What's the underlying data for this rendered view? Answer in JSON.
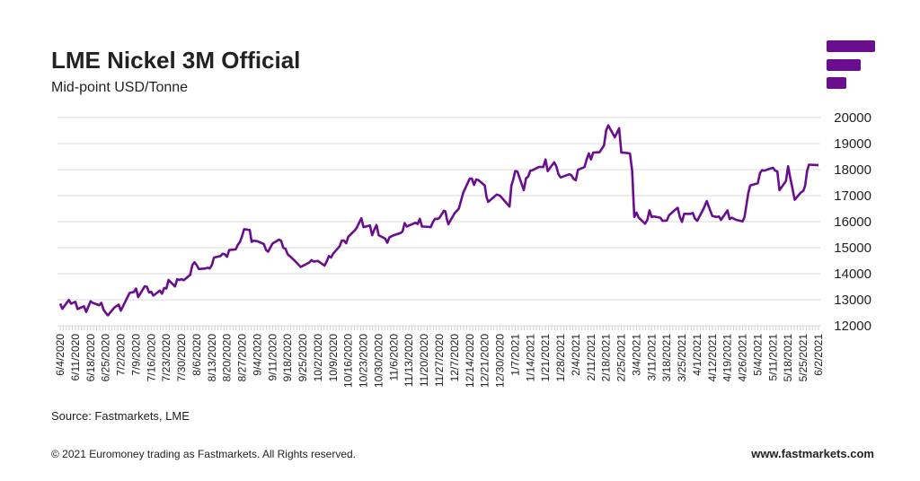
{
  "header": {
    "title": "LME Nickel 3M Official",
    "subtitle": "Mid-point USD/Tonne"
  },
  "brand": {
    "color": "#6b0d8f",
    "logo": "fastmarkets-bars-logo"
  },
  "footer": {
    "source": "Source: Fastmarkets, LME",
    "copyright": "© 2021 Euromoney trading as Fastmarkets. All Rights reserved.",
    "site": "www.fastmarkets.com"
  },
  "chart_data": {
    "type": "line",
    "title": "LME Nickel 3M Official",
    "subtitle": "Mid-point USD/Tonne",
    "xlabel": "",
    "ylabel": "",
    "ylim": [
      12000,
      20000
    ],
    "y_ticks": [
      "12000",
      "13000",
      "14000",
      "15000",
      "16000",
      "17000",
      "18000",
      "19000",
      "20000"
    ],
    "y_axis_position": "right",
    "grid": true,
    "legend": "none",
    "line_color": "#6b0d8f",
    "x_tick_labels": [
      "6/4/2020",
      "6/11/2020",
      "6/18/2020",
      "6/25/2020",
      "7/2/2020",
      "7/9/2020",
      "7/16/2020",
      "7/23/2020",
      "7/30/2020",
      "8/6/2020",
      "8/13/2020",
      "8/20/2020",
      "8/27/2020",
      "9/4/2020",
      "9/11/2020",
      "9/18/2020",
      "9/25/2020",
      "10/2/2020",
      "10/9/2020",
      "10/16/2020",
      "10/23/2020",
      "10/30/2020",
      "11/6/2020",
      "11/13/2020",
      "11/20/2020",
      "11/27/2020",
      "12/7/2020",
      "12/14/2020",
      "12/21/2020",
      "12/30/2020",
      "1/7/2021",
      "1/14/2021",
      "1/21/2021",
      "1/28/2021",
      "2/4/2021",
      "2/11/2021",
      "2/18/2021",
      "2/25/2021",
      "3/4/2021",
      "3/11/2021",
      "3/18/2021",
      "3/25/2021",
      "4/1/2021",
      "4/12/2021",
      "4/19/2021",
      "4/26/2021",
      "5/4/2021",
      "5/11/2021",
      "5/18/2021",
      "5/25/2021",
      "6/2/2021"
    ],
    "series": [
      {
        "points": [
          [
            "6/4/2020",
            12850
          ],
          [
            "6/5/2020",
            12650
          ],
          [
            "6/8/2020",
            12990
          ],
          [
            "6/9/2020",
            12850
          ],
          [
            "6/11/2020",
            12920
          ],
          [
            "6/12/2020",
            12640
          ],
          [
            "6/15/2020",
            12750
          ],
          [
            "6/16/2020",
            12530
          ],
          [
            "6/18/2020",
            12940
          ],
          [
            "6/19/2020",
            12880
          ],
          [
            "6/22/2020",
            12790
          ],
          [
            "6/23/2020",
            12880
          ],
          [
            "6/24/2020",
            12620
          ],
          [
            "6/25/2020",
            12500
          ],
          [
            "6/26/2020",
            12400
          ],
          [
            "6/29/2020",
            12700
          ],
          [
            "7/1/2020",
            12810
          ],
          [
            "7/2/2020",
            12580
          ],
          [
            "7/6/2020",
            13260
          ],
          [
            "7/8/2020",
            13300
          ],
          [
            "7/9/2020",
            13430
          ],
          [
            "7/10/2020",
            13100
          ],
          [
            "7/13/2020",
            13510
          ],
          [
            "7/14/2020",
            13500
          ],
          [
            "7/15/2020",
            13280
          ],
          [
            "7/16/2020",
            13300
          ],
          [
            "7/17/2020",
            13160
          ],
          [
            "7/20/2020",
            13350
          ],
          [
            "7/21/2020",
            13230
          ],
          [
            "7/22/2020",
            13450
          ],
          [
            "7/23/2020",
            13430
          ],
          [
            "7/24/2020",
            13760
          ],
          [
            "7/27/2020",
            13510
          ],
          [
            "7/28/2020",
            13790
          ],
          [
            "7/29/2020",
            13760
          ],
          [
            "7/30/2020",
            13790
          ],
          [
            "7/31/2020",
            13750
          ],
          [
            "8/3/2020",
            13960
          ],
          [
            "8/4/2020",
            14330
          ],
          [
            "8/5/2020",
            14440
          ],
          [
            "8/6/2020",
            14330
          ],
          [
            "8/7/2020",
            14180
          ],
          [
            "8/10/2020",
            14200
          ],
          [
            "8/11/2020",
            14230
          ],
          [
            "8/12/2020",
            14200
          ],
          [
            "8/13/2020",
            14330
          ],
          [
            "8/14/2020",
            14620
          ],
          [
            "8/17/2020",
            14680
          ],
          [
            "8/18/2020",
            14770
          ],
          [
            "8/19/2020",
            14740
          ],
          [
            "8/20/2020",
            14650
          ],
          [
            "8/21/2020",
            14910
          ],
          [
            "8/24/2020",
            14930
          ],
          [
            "8/25/2020",
            15110
          ],
          [
            "8/26/2020",
            15220
          ],
          [
            "8/27/2020",
            15460
          ],
          [
            "8/28/2020",
            15710
          ],
          [
            "8/31/2020",
            15680
          ],
          [
            "9/1/2020",
            15220
          ],
          [
            "9/2/2020",
            15270
          ],
          [
            "9/4/2020",
            15250
          ],
          [
            "9/7/2020",
            15140
          ],
          [
            "9/8/2020",
            14910
          ],
          [
            "9/9/2020",
            14850
          ],
          [
            "9/10/2020",
            15010
          ],
          [
            "9/11/2020",
            15160
          ],
          [
            "9/14/2020",
            15310
          ],
          [
            "9/15/2020",
            15260
          ],
          [
            "9/16/2020",
            14990
          ],
          [
            "9/17/2020",
            14960
          ],
          [
            "9/18/2020",
            14750
          ],
          [
            "9/21/2020",
            14520
          ],
          [
            "9/24/2020",
            14260
          ],
          [
            "9/28/2020",
            14430
          ],
          [
            "9/29/2020",
            14520
          ],
          [
            "9/30/2020",
            14470
          ],
          [
            "10/2/2020",
            14490
          ],
          [
            "10/5/2020",
            14310
          ],
          [
            "10/6/2020",
            14470
          ],
          [
            "10/7/2020",
            14680
          ],
          [
            "10/8/2020",
            14620
          ],
          [
            "10/9/2020",
            14770
          ],
          [
            "10/12/2020",
            15060
          ],
          [
            "10/13/2020",
            15280
          ],
          [
            "10/14/2020",
            15270
          ],
          [
            "10/15/2020",
            15170
          ],
          [
            "10/16/2020",
            15420
          ],
          [
            "10/19/2020",
            15670
          ],
          [
            "10/20/2020",
            15790
          ],
          [
            "10/22/2020",
            16130
          ],
          [
            "10/23/2020",
            15790
          ],
          [
            "10/26/2020",
            15850
          ],
          [
            "10/27/2020",
            15480
          ],
          [
            "10/28/2020",
            15700
          ],
          [
            "10/29/2020",
            15870
          ],
          [
            "10/30/2020",
            15480
          ],
          [
            "11/2/2020",
            15350
          ],
          [
            "11/3/2020",
            15190
          ],
          [
            "11/4/2020",
            15400
          ],
          [
            "11/6/2020",
            15480
          ],
          [
            "11/9/2020",
            15560
          ],
          [
            "11/10/2020",
            15620
          ],
          [
            "11/11/2020",
            15940
          ],
          [
            "11/12/2020",
            15810
          ],
          [
            "11/13/2020",
            15850
          ],
          [
            "11/16/2020",
            15960
          ],
          [
            "11/17/2020",
            15910
          ],
          [
            "11/18/2020",
            16110
          ],
          [
            "11/19/2020",
            15810
          ],
          [
            "11/20/2020",
            15810
          ],
          [
            "11/23/2020",
            15790
          ],
          [
            "11/24/2020",
            15980
          ],
          [
            "11/25/2020",
            16110
          ],
          [
            "11/26/2020",
            16100
          ],
          [
            "11/27/2020",
            16140
          ],
          [
            "11/30/2020",
            16420
          ],
          [
            "12/1/2020",
            16390
          ],
          [
            "12/2/2020",
            16100
          ],
          [
            "12/3/2020",
            15900
          ],
          [
            "12/7/2020",
            16320
          ],
          [
            "12/9/2020",
            16500
          ],
          [
            "12/11/2020",
            17100
          ],
          [
            "12/14/2020",
            17650
          ],
          [
            "12/15/2020",
            17650
          ],
          [
            "12/16/2020",
            17410
          ],
          [
            "12/17/2020",
            17620
          ],
          [
            "12/18/2020",
            17600
          ],
          [
            "12/21/2020",
            17390
          ],
          [
            "12/22/2020",
            16950
          ],
          [
            "12/23/2020",
            16760
          ],
          [
            "12/28/2020",
            17040
          ],
          [
            "12/30/2020",
            17000
          ],
          [
            "1/4/2021",
            16580
          ],
          [
            "1/5/2021",
            17390
          ],
          [
            "1/6/2021",
            17620
          ],
          [
            "1/7/2021",
            17940
          ],
          [
            "1/8/2021",
            17930
          ],
          [
            "1/11/2021",
            17210
          ],
          [
            "1/12/2021",
            17670
          ],
          [
            "1/13/2021",
            17730
          ],
          [
            "1/14/2021",
            17960
          ],
          [
            "1/15/2021",
            17980
          ],
          [
            "1/18/2021",
            18100
          ],
          [
            "1/20/2021",
            18100
          ],
          [
            "1/21/2021",
            18390
          ],
          [
            "1/22/2021",
            17940
          ],
          [
            "1/25/2021",
            18280
          ],
          [
            "1/26/2021",
            18130
          ],
          [
            "1/27/2021",
            17820
          ],
          [
            "1/28/2021",
            17700
          ],
          [
            "2/1/2021",
            17820
          ],
          [
            "2/2/2021",
            17780
          ],
          [
            "2/3/2021",
            17640
          ],
          [
            "2/4/2021",
            17590
          ],
          [
            "2/5/2021",
            17990
          ],
          [
            "2/8/2021",
            18100
          ],
          [
            "2/9/2021",
            18390
          ],
          [
            "2/10/2021",
            18620
          ],
          [
            "2/11/2021",
            18390
          ],
          [
            "2/12/2021",
            18650
          ],
          [
            "2/15/2021",
            18670
          ],
          [
            "2/17/2021",
            18930
          ],
          [
            "2/18/2021",
            19510
          ],
          [
            "2/19/2021",
            19700
          ],
          [
            "2/22/2021",
            19240
          ],
          [
            "2/24/2021",
            19590
          ],
          [
            "2/25/2021",
            18650
          ],
          [
            "2/26/2021",
            18650
          ],
          [
            "3/1/2021",
            18620
          ],
          [
            "3/2/2021",
            17960
          ],
          [
            "3/3/2021",
            16180
          ],
          [
            "3/4/2021",
            16350
          ],
          [
            "3/5/2021",
            16150
          ],
          [
            "3/8/2021",
            15920
          ],
          [
            "3/9/2021",
            16070
          ],
          [
            "3/10/2021",
            16430
          ],
          [
            "3/11/2021",
            16180
          ],
          [
            "3/12/2021",
            16200
          ],
          [
            "3/15/2021",
            16150
          ],
          [
            "3/16/2021",
            16030
          ],
          [
            "3/18/2021",
            16040
          ],
          [
            "3/19/2021",
            16240
          ],
          [
            "3/22/2021",
            16470
          ],
          [
            "3/23/2021",
            16530
          ],
          [
            "3/24/2021",
            16180
          ],
          [
            "3/25/2021",
            15990
          ],
          [
            "3/26/2021",
            16300
          ],
          [
            "3/29/2021",
            16300
          ],
          [
            "3/30/2021",
            16330
          ],
          [
            "3/31/2021",
            16120
          ],
          [
            "4/1/2021",
            16030
          ],
          [
            "4/6/2021",
            16530
          ],
          [
            "4/7/2021",
            16680
          ],
          [
            "4/8/2021",
            16790
          ],
          [
            "4/9/2021",
            16640
          ],
          [
            "4/12/2021",
            16220
          ],
          [
            "4/14/2021",
            16180
          ],
          [
            "4/15/2021",
            16200
          ],
          [
            "4/16/2021",
            16070
          ],
          [
            "4/19/2021",
            16430
          ],
          [
            "4/20/2021",
            16100
          ],
          [
            "4/21/2021",
            16150
          ],
          [
            "4/23/2021",
            16070
          ],
          [
            "4/26/2021",
            16010
          ],
          [
            "4/27/2021",
            16180
          ],
          [
            "4/28/2021",
            16640
          ],
          [
            "4/29/2021",
            17100
          ],
          [
            "4/30/2021",
            17390
          ],
          [
            "5/4/2021",
            17480
          ],
          [
            "5/5/2021",
            17870
          ],
          [
            "5/6/2021",
            17980
          ],
          [
            "5/7/2021",
            17960
          ],
          [
            "5/10/2021",
            18050
          ],
          [
            "5/11/2021",
            18070
          ],
          [
            "5/12/2021",
            17960
          ],
          [
            "5/13/2021",
            17930
          ],
          [
            "5/14/2021",
            17210
          ],
          [
            "5/17/2021",
            17560
          ],
          [
            "5/18/2021",
            18130
          ],
          [
            "5/19/2021",
            17670
          ],
          [
            "5/20/2021",
            17270
          ],
          [
            "5/21/2021",
            16840
          ],
          [
            "5/24/2021",
            17130
          ],
          [
            "5/25/2021",
            17180
          ],
          [
            "5/26/2021",
            17390
          ],
          [
            "5/27/2021",
            17940
          ],
          [
            "5/28/2021",
            18190
          ],
          [
            "6/2/2021",
            18170
          ]
        ]
      }
    ]
  }
}
